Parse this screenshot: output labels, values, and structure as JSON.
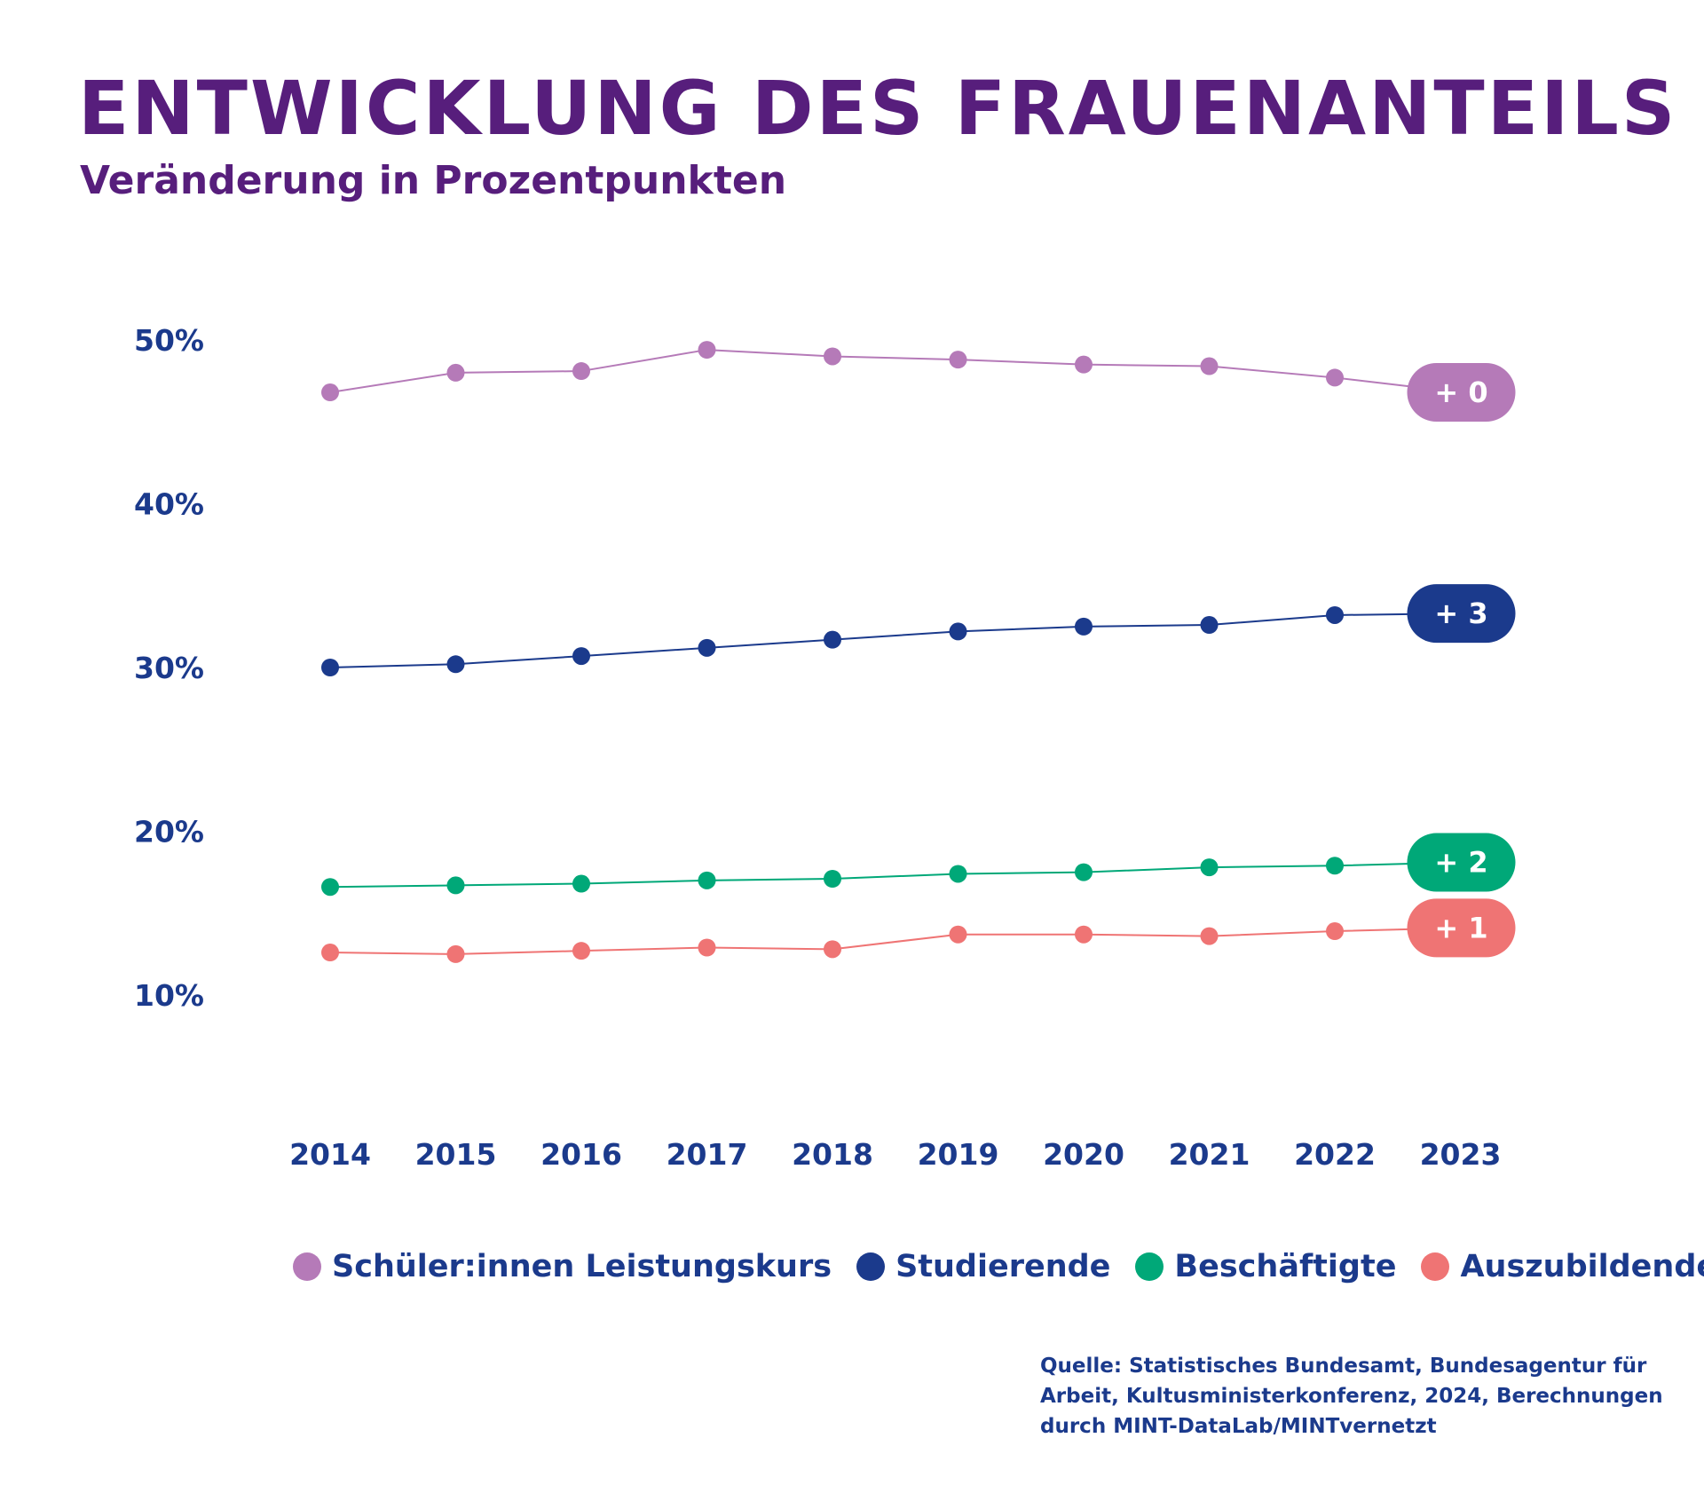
{
  "chart_data": {
    "type": "line",
    "title": "ENTWICKLUNG DES FRAUENANTEILS",
    "subtitle": "Veränderung in Prozentpunkten",
    "categories": [
      "2014",
      "2015",
      "2016",
      "2017",
      "2018",
      "2019",
      "2020",
      "2021",
      "2022",
      "2023"
    ],
    "y_ticks": [
      "50%",
      "40%",
      "30%",
      "20%",
      "10%"
    ],
    "ylim": [
      10,
      50
    ],
    "grid": false,
    "legend_placement": "bottom",
    "series": [
      {
        "name": "Schüler:innen Leistungskurs",
        "color": "#b57ab8",
        "values": [
          46.8,
          48.0,
          48.1,
          49.4,
          49.0,
          48.8,
          48.5,
          48.4,
          47.7,
          46.8
        ],
        "change_label": "+ 0"
      },
      {
        "name": "Studierende",
        "color": "#1b3a8c",
        "values": [
          30.0,
          30.2,
          30.7,
          31.2,
          31.7,
          32.2,
          32.5,
          32.6,
          33.2,
          33.3
        ],
        "change_label": "+ 3"
      },
      {
        "name": "Beschäftigte",
        "color": "#00a878",
        "values": [
          16.6,
          16.7,
          16.8,
          17.0,
          17.1,
          17.4,
          17.5,
          17.8,
          17.9,
          18.1
        ],
        "change_label": "+ 2"
      },
      {
        "name": "Auszubildende",
        "color": "#ef7474",
        "values": [
          12.6,
          12.5,
          12.7,
          12.9,
          12.8,
          13.7,
          13.7,
          13.6,
          13.9,
          14.1
        ],
        "change_label": "+ 1"
      }
    ]
  },
  "source_lines": [
    "Quelle: Statistisches Bundesamt, Bundesagentur für",
    "Arbeit, Kultusministerkonferenz, 2024, Berechnungen",
    "durch MINT-DataLab/MINTvernetzt"
  ]
}
